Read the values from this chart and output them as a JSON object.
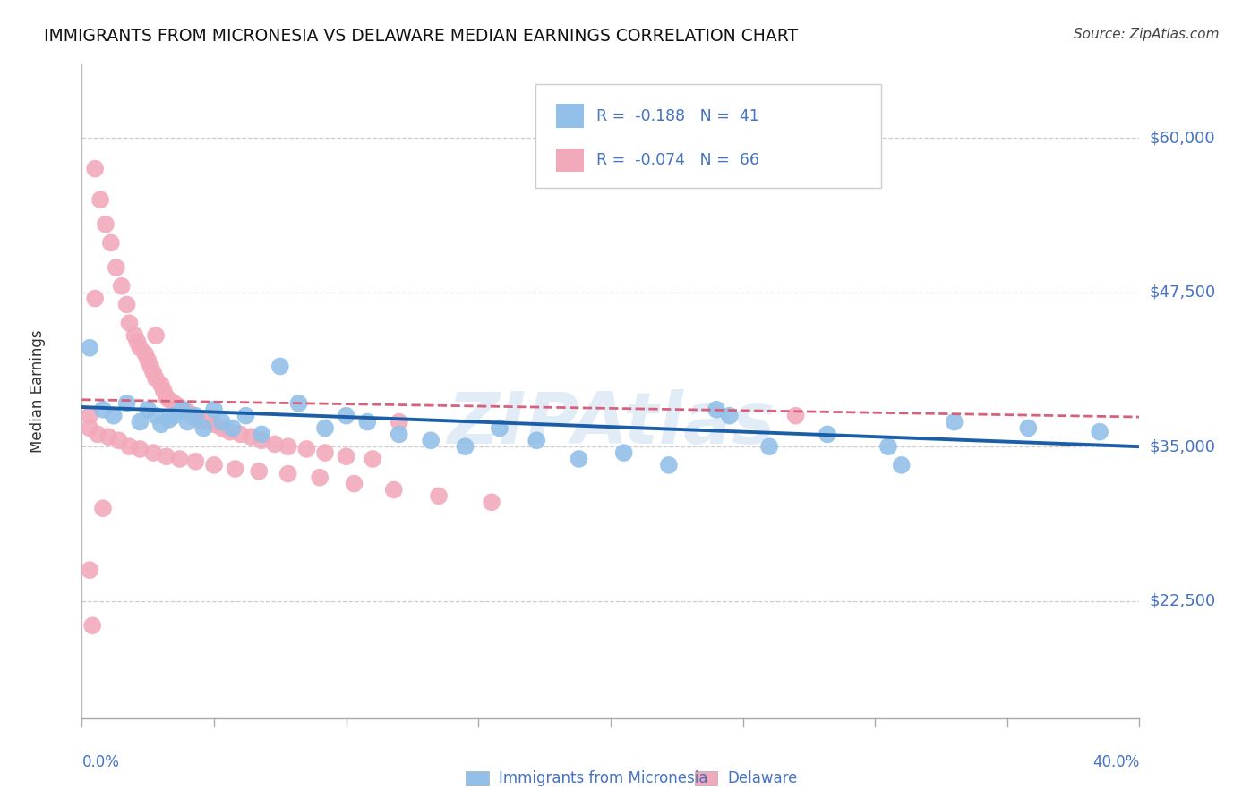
{
  "title": "IMMIGRANTS FROM MICRONESIA VS DELAWARE MEDIAN EARNINGS CORRELATION CHART",
  "source": "Source: ZipAtlas.com",
  "ylabel": "Median Earnings",
  "ytick_labels": [
    "$22,500",
    "$35,000",
    "$47,500",
    "$60,000"
  ],
  "ytick_values": [
    22500,
    35000,
    47500,
    60000
  ],
  "ymin": 13000,
  "ymax": 66000,
  "xmin": 0.0,
  "xmax": 0.4,
  "color_blue": "#92C0E8",
  "color_pink": "#F2AABB",
  "trendline_blue": "#1B5EA8",
  "trendline_pink": "#D9607A",
  "bg_color": "#FFFFFF",
  "watermark": "ZIPAtlas",
  "blue_slope": -8000,
  "blue_intercept": 38200,
  "pink_slope": -3500,
  "pink_intercept": 38800,
  "blue_points_x": [
    0.003,
    0.008,
    0.012,
    0.017,
    0.022,
    0.025,
    0.028,
    0.03,
    0.033,
    0.035,
    0.038,
    0.04,
    0.043,
    0.046,
    0.05,
    0.053,
    0.057,
    0.062,
    0.068,
    0.075,
    0.082,
    0.092,
    0.1,
    0.108,
    0.12,
    0.132,
    0.145,
    0.158,
    0.172,
    0.188,
    0.205,
    0.222,
    0.24,
    0.26,
    0.282,
    0.305,
    0.33,
    0.358,
    0.385,
    0.31,
    0.245
  ],
  "blue_points_y": [
    43000,
    38000,
    37500,
    38500,
    37000,
    38000,
    37500,
    36800,
    37200,
    37500,
    38000,
    37000,
    37500,
    36500,
    38000,
    37000,
    36500,
    37500,
    36000,
    41500,
    38500,
    36500,
    37500,
    37000,
    36000,
    35500,
    35000,
    36500,
    35500,
    34000,
    34500,
    33500,
    38000,
    35000,
    36000,
    35000,
    37000,
    36500,
    36200,
    33500,
    37500
  ],
  "pink_points_x": [
    0.003,
    0.005,
    0.007,
    0.009,
    0.011,
    0.013,
    0.015,
    0.017,
    0.018,
    0.02,
    0.021,
    0.022,
    0.024,
    0.025,
    0.026,
    0.027,
    0.028,
    0.03,
    0.031,
    0.032,
    0.033,
    0.035,
    0.037,
    0.038,
    0.04,
    0.042,
    0.044,
    0.047,
    0.05,
    0.053,
    0.056,
    0.06,
    0.064,
    0.068,
    0.073,
    0.078,
    0.085,
    0.092,
    0.1,
    0.11,
    0.003,
    0.006,
    0.01,
    0.014,
    0.018,
    0.022,
    0.027,
    0.032,
    0.037,
    0.043,
    0.05,
    0.058,
    0.067,
    0.078,
    0.09,
    0.103,
    0.118,
    0.135,
    0.155,
    0.028,
    0.003,
    0.004,
    0.008,
    0.005,
    0.12,
    0.27
  ],
  "pink_points_y": [
    37500,
    57500,
    55000,
    53000,
    51500,
    49500,
    48000,
    46500,
    45000,
    44000,
    43500,
    43000,
    42500,
    42000,
    41500,
    41000,
    40500,
    40000,
    39500,
    39000,
    38800,
    38500,
    38200,
    38000,
    37800,
    37500,
    37200,
    37000,
    36800,
    36500,
    36200,
    36000,
    35800,
    35500,
    35200,
    35000,
    34800,
    34500,
    34200,
    34000,
    36500,
    36000,
    35800,
    35500,
    35000,
    34800,
    34500,
    34200,
    34000,
    33800,
    33500,
    33200,
    33000,
    32800,
    32500,
    32000,
    31500,
    31000,
    30500,
    44000,
    25000,
    20500,
    30000,
    47000,
    37000,
    37500
  ]
}
